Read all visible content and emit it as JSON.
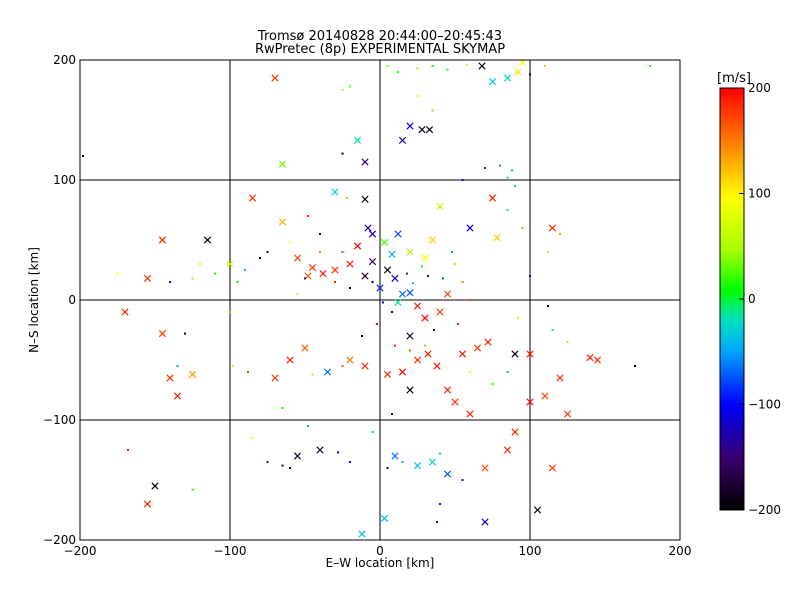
{
  "chart_data": {
    "type": "scatter",
    "title": "Tromsø 20140828 20:44:00–20:45:43",
    "subtitle": "RwPretec (8p) EXPERIMENTAL SKYMAP",
    "xlabel": "E–W location [km]",
    "ylabel": "N–S location [km]",
    "xlim": [
      -200,
      200
    ],
    "ylim": [
      -200,
      200
    ],
    "xticks": [
      -200,
      -100,
      0,
      100,
      200
    ],
    "yticks": [
      -200,
      -100,
      0,
      100,
      200
    ],
    "x_tick_labels": [
      "−200",
      "−100",
      "0",
      "100",
      "200"
    ],
    "y_tick_labels": [
      "−200",
      "−100",
      "0",
      "100",
      "200"
    ],
    "grid": true,
    "colorbar": {
      "label": "[m/s]",
      "range": [
        -200,
        200
      ],
      "ticks": [
        -200,
        -100,
        0,
        100,
        200
      ],
      "tick_labels": [
        "−200",
        "−100",
        "0",
        "100",
        "200"
      ],
      "colormap": [
        "#000000",
        "#3a006a",
        "#0000ff",
        "#00aaff",
        "#00e0c0",
        "#00ff00",
        "#aaff00",
        "#ffff00",
        "#ff8800",
        "#ff0000"
      ]
    },
    "points": [
      {
        "x": -45,
        "y": 27,
        "v": 180,
        "m": "x"
      },
      {
        "x": -38,
        "y": 22,
        "v": 190,
        "m": "x"
      },
      {
        "x": -48,
        "y": 20,
        "v": 170,
        "m": "x"
      },
      {
        "x": -30,
        "y": 25,
        "v": 185,
        "m": "x"
      },
      {
        "x": -55,
        "y": 35,
        "v": 175,
        "m": "x"
      },
      {
        "x": -40,
        "y": 40,
        "v": 160,
        "m": "+"
      },
      {
        "x": -20,
        "y": 30,
        "v": 190,
        "m": "x"
      },
      {
        "x": -15,
        "y": 45,
        "v": 200,
        "m": "x"
      },
      {
        "x": -10,
        "y": 20,
        "v": -180,
        "m": "x"
      },
      {
        "x": -5,
        "y": 32,
        "v": -150,
        "m": "x"
      },
      {
        "x": 0,
        "y": 10,
        "v": -100,
        "m": "x"
      },
      {
        "x": 5,
        "y": 25,
        "v": -190,
        "m": "x"
      },
      {
        "x": 10,
        "y": 18,
        "v": -120,
        "m": "x"
      },
      {
        "x": 15,
        "y": 5,
        "v": -80,
        "m": "x"
      },
      {
        "x": 8,
        "y": 38,
        "v": -60,
        "m": "x"
      },
      {
        "x": 12,
        "y": 55,
        "v": -90,
        "m": "x"
      },
      {
        "x": -8,
        "y": 60,
        "v": -130,
        "m": "x"
      },
      {
        "x": 3,
        "y": 48,
        "v": 40,
        "m": "x"
      },
      {
        "x": 20,
        "y": 40,
        "v": 70,
        "m": "x"
      },
      {
        "x": 30,
        "y": 35,
        "v": 110,
        "m": "x"
      },
      {
        "x": 35,
        "y": 50,
        "v": 130,
        "m": "x"
      },
      {
        "x": 25,
        "y": -5,
        "v": 190,
        "m": "x"
      },
      {
        "x": 30,
        "y": -15,
        "v": 200,
        "m": "x"
      },
      {
        "x": 40,
        "y": -10,
        "v": 180,
        "m": "x"
      },
      {
        "x": 45,
        "y": 5,
        "v": 175,
        "m": "x"
      },
      {
        "x": 20,
        "y": -30,
        "v": -170,
        "m": "x"
      },
      {
        "x": 32,
        "y": -45,
        "v": 190,
        "m": "x"
      },
      {
        "x": 25,
        "y": -50,
        "v": 185,
        "m": "x"
      },
      {
        "x": 38,
        "y": -55,
        "v": 195,
        "m": "x"
      },
      {
        "x": 15,
        "y": -60,
        "v": 200,
        "m": "x"
      },
      {
        "x": 5,
        "y": -62,
        "v": 185,
        "m": "x"
      },
      {
        "x": 55,
        "y": -45,
        "v": 190,
        "m": "x"
      },
      {
        "x": 65,
        "y": -40,
        "v": 180,
        "m": "x"
      },
      {
        "x": 72,
        "y": -35,
        "v": 190,
        "m": "x"
      },
      {
        "x": -10,
        "y": -55,
        "v": 185,
        "m": "x"
      },
      {
        "x": -20,
        "y": -50,
        "v": 160,
        "m": "x"
      },
      {
        "x": -60,
        "y": -50,
        "v": 190,
        "m": "x"
      },
      {
        "x": -70,
        "y": -65,
        "v": 180,
        "m": "x"
      },
      {
        "x": -50,
        "y": -40,
        "v": 170,
        "m": "x"
      },
      {
        "x": -35,
        "y": -60,
        "v": -80,
        "m": "x"
      },
      {
        "x": 20,
        "y": -75,
        "v": -190,
        "m": "x"
      },
      {
        "x": 45,
        "y": -75,
        "v": 190,
        "m": "x"
      },
      {
        "x": 50,
        "y": -85,
        "v": 185,
        "m": "x"
      },
      {
        "x": 60,
        "y": -95,
        "v": 190,
        "m": "x"
      },
      {
        "x": 100,
        "y": -85,
        "v": 195,
        "m": "x"
      },
      {
        "x": 110,
        "y": -80,
        "v": 175,
        "m": "x"
      },
      {
        "x": 120,
        "y": -65,
        "v": 185,
        "m": "x"
      },
      {
        "x": 125,
        "y": -95,
        "v": 180,
        "m": "x"
      },
      {
        "x": 140,
        "y": -48,
        "v": 190,
        "m": "x"
      },
      {
        "x": 145,
        "y": -50,
        "v": 185,
        "m": "x"
      },
      {
        "x": 90,
        "y": -110,
        "v": 190,
        "m": "x"
      },
      {
        "x": 85,
        "y": -125,
        "v": 185,
        "m": "x"
      },
      {
        "x": 70,
        "y": -140,
        "v": 175,
        "m": "x"
      },
      {
        "x": 115,
        "y": -140,
        "v": 180,
        "m": "x"
      },
      {
        "x": 100,
        "y": -45,
        "v": 190,
        "m": "x"
      },
      {
        "x": 90,
        "y": -45,
        "v": -190,
        "m": "x"
      },
      {
        "x": 105,
        "y": -175,
        "v": -190,
        "m": "x"
      },
      {
        "x": 70,
        "y": -185,
        "v": -130,
        "m": "x"
      },
      {
        "x": 3,
        "y": -182,
        "v": -60,
        "m": "x"
      },
      {
        "x": -12,
        "y": -195,
        "v": -50,
        "m": "x"
      },
      {
        "x": -150,
        "y": -155,
        "v": -190,
        "m": "x"
      },
      {
        "x": -155,
        "y": -170,
        "v": 190,
        "m": "x"
      },
      {
        "x": -140,
        "y": -65,
        "v": 185,
        "m": "x"
      },
      {
        "x": -125,
        "y": -62,
        "v": 150,
        "m": "x"
      },
      {
        "x": -135,
        "y": -80,
        "v": 190,
        "m": "x"
      },
      {
        "x": -145,
        "y": -28,
        "v": 180,
        "m": "x"
      },
      {
        "x": -170,
        "y": -10,
        "v": 190,
        "m": "x"
      },
      {
        "x": -155,
        "y": 18,
        "v": 185,
        "m": "x"
      },
      {
        "x": -145,
        "y": 50,
        "v": 190,
        "m": "x"
      },
      {
        "x": -115,
        "y": 50,
        "v": -190,
        "m": "x"
      },
      {
        "x": -100,
        "y": 30,
        "v": 90,
        "m": "x"
      },
      {
        "x": -85,
        "y": 85,
        "v": 185,
        "m": "x"
      },
      {
        "x": -65,
        "y": 65,
        "v": 140,
        "m": "x"
      },
      {
        "x": -70,
        "y": 185,
        "v": 185,
        "m": "x"
      },
      {
        "x": -65,
        "y": 113,
        "v": 50,
        "m": "x"
      },
      {
        "x": -15,
        "y": 133,
        "v": -20,
        "m": "x"
      },
      {
        "x": -10,
        "y": 115,
        "v": -150,
        "m": "x"
      },
      {
        "x": -30,
        "y": 90,
        "v": -30,
        "m": "x"
      },
      {
        "x": -10,
        "y": 84,
        "v": -190,
        "m": "x"
      },
      {
        "x": 20,
        "y": 145,
        "v": -110,
        "m": "x"
      },
      {
        "x": 28,
        "y": 142,
        "v": -190,
        "m": "x"
      },
      {
        "x": 33,
        "y": 142,
        "v": -190,
        "m": "x"
      },
      {
        "x": 15,
        "y": 133,
        "v": -140,
        "m": "x"
      },
      {
        "x": 40,
        "y": 78,
        "v": 80,
        "m": "x"
      },
      {
        "x": 60,
        "y": 60,
        "v": -110,
        "m": "x"
      },
      {
        "x": 75,
        "y": 85,
        "v": 190,
        "m": "x"
      },
      {
        "x": 78,
        "y": 52,
        "v": 130,
        "m": "x"
      },
      {
        "x": 115,
        "y": 60,
        "v": 185,
        "m": "x"
      },
      {
        "x": 92,
        "y": 190,
        "v": 120,
        "m": "x"
      },
      {
        "x": 95,
        "y": 198,
        "v": 110,
        "m": "x"
      },
      {
        "x": 68,
        "y": 195,
        "v": -190,
        "m": "x"
      },
      {
        "x": 75,
        "y": 182,
        "v": -40,
        "m": "x"
      },
      {
        "x": 85,
        "y": 185,
        "v": -20,
        "m": "x"
      },
      {
        "x": 20,
        "y": 6,
        "v": -90,
        "m": "x"
      },
      {
        "x": 12,
        "y": -2,
        "v": -10,
        "m": "x"
      },
      {
        "x": -5,
        "y": 55,
        "v": -120,
        "m": "x"
      },
      {
        "x": -55,
        "y": -130,
        "v": -180,
        "m": "x"
      },
      {
        "x": -40,
        "y": -125,
        "v": -170,
        "m": "x"
      },
      {
        "x": 10,
        "y": -130,
        "v": -80,
        "m": "x"
      },
      {
        "x": 25,
        "y": -138,
        "v": -40,
        "m": "x"
      },
      {
        "x": 35,
        "y": -135,
        "v": -30,
        "m": "x"
      },
      {
        "x": 45,
        "y": -145,
        "v": -90,
        "m": "x"
      },
      {
        "x": -28,
        "y": -127,
        "v": -120,
        "m": "+"
      },
      {
        "x": -65,
        "y": -138,
        "v": -170,
        "m": "+"
      },
      {
        "x": -75,
        "y": -135,
        "v": -150,
        "m": "+"
      },
      {
        "x": -60,
        "y": -140,
        "v": -180,
        "m": "+"
      },
      {
        "x": 15,
        "y": -135,
        "v": -60,
        "m": "+"
      },
      {
        "x": 40,
        "y": -128,
        "v": -40,
        "m": "+"
      },
      {
        "x": 5,
        "y": -140,
        "v": -130,
        "m": "+"
      },
      {
        "x": -20,
        "y": -135,
        "v": -110,
        "m": "+"
      },
      {
        "x": 55,
        "y": -150,
        "v": -140,
        "m": "+"
      },
      {
        "x": 40,
        "y": -170,
        "v": -110,
        "m": "+"
      },
      {
        "x": 38,
        "y": -185,
        "v": -150,
        "m": "+"
      },
      {
        "x": -40,
        "y": 55,
        "v": -160,
        "m": "+"
      },
      {
        "x": -25,
        "y": 40,
        "v": 180,
        "m": "+"
      },
      {
        "x": -30,
        "y": 15,
        "v": 190,
        "m": "+"
      },
      {
        "x": -20,
        "y": 10,
        "v": -170,
        "m": "+"
      },
      {
        "x": -5,
        "y": 15,
        "v": -190,
        "m": "+"
      },
      {
        "x": 2,
        "y": -2,
        "v": -140,
        "m": "+"
      },
      {
        "x": 8,
        "y": -10,
        "v": -180,
        "m": "+"
      },
      {
        "x": 18,
        "y": 22,
        "v": -100,
        "m": "+"
      },
      {
        "x": 22,
        "y": 14,
        "v": -60,
        "m": "+"
      },
      {
        "x": 28,
        "y": 28,
        "v": 20,
        "m": "+"
      },
      {
        "x": 32,
        "y": 20,
        "v": -120,
        "m": "+"
      },
      {
        "x": 42,
        "y": 18,
        "v": -90,
        "m": "+"
      },
      {
        "x": 50,
        "y": 30,
        "v": 60,
        "m": "+"
      },
      {
        "x": 48,
        "y": 40,
        "v": -70,
        "m": "+"
      },
      {
        "x": 55,
        "y": 15,
        "v": 160,
        "m": "+"
      },
      {
        "x": 60,
        "y": 0,
        "v": 180,
        "m": "+"
      },
      {
        "x": 52,
        "y": -20,
        "v": 190,
        "m": "+"
      },
      {
        "x": 36,
        "y": -25,
        "v": -180,
        "m": "+"
      },
      {
        "x": 30,
        "y": -38,
        "v": 140,
        "m": "+"
      },
      {
        "x": 20,
        "y": -42,
        "v": 170,
        "m": "+"
      },
      {
        "x": 10,
        "y": -38,
        "v": 190,
        "m": "+"
      },
      {
        "x": -2,
        "y": -20,
        "v": 200,
        "m": "+"
      },
      {
        "x": -12,
        "y": -30,
        "v": -200,
        "m": "+"
      },
      {
        "x": -25,
        "y": -55,
        "v": 170,
        "m": "+"
      },
      {
        "x": -45,
        "y": -62,
        "v": 60,
        "m": "+"
      },
      {
        "x": -88,
        "y": -60,
        "v": 185,
        "m": "+"
      },
      {
        "x": -98,
        "y": -55,
        "v": 80,
        "m": "+"
      },
      {
        "x": -120,
        "y": 30,
        "v": 90,
        "m": "+"
      },
      {
        "x": -125,
        "y": 18,
        "v": 60,
        "m": "+"
      },
      {
        "x": -110,
        "y": 22,
        "v": 30,
        "m": "+"
      },
      {
        "x": -95,
        "y": 15,
        "v": 20,
        "m": "+"
      },
      {
        "x": -90,
        "y": 25,
        "v": -60,
        "m": "+"
      },
      {
        "x": -80,
        "y": 35,
        "v": -190,
        "m": "+"
      },
      {
        "x": -75,
        "y": 40,
        "v": -130,
        "m": "+"
      },
      {
        "x": -140,
        "y": 15,
        "v": -120,
        "m": "+"
      },
      {
        "x": -175,
        "y": 22,
        "v": 110,
        "m": "+"
      },
      {
        "x": -100,
        "y": -10,
        "v": 40,
        "m": "+"
      },
      {
        "x": -135,
        "y": -55,
        "v": -70,
        "m": "+"
      },
      {
        "x": -130,
        "y": -28,
        "v": -190,
        "m": "+"
      },
      {
        "x": -168,
        "y": -125,
        "v": 190,
        "m": "+"
      },
      {
        "x": -125,
        "y": -158,
        "v": 20,
        "m": "+"
      },
      {
        "x": -198,
        "y": 120,
        "v": -190,
        "m": "+"
      },
      {
        "x": -25,
        "y": 175,
        "v": 60,
        "m": "+"
      },
      {
        "x": -20,
        "y": 178,
        "v": 40,
        "m": "+"
      },
      {
        "x": 5,
        "y": 195,
        "v": 50,
        "m": "+"
      },
      {
        "x": 12,
        "y": 190,
        "v": 30,
        "m": "+"
      },
      {
        "x": 25,
        "y": 193,
        "v": 60,
        "m": "+"
      },
      {
        "x": 35,
        "y": 195,
        "v": 30,
        "m": "+"
      },
      {
        "x": 45,
        "y": 192,
        "v": 20,
        "m": "+"
      },
      {
        "x": 58,
        "y": 196,
        "v": 70,
        "m": "+"
      },
      {
        "x": 100,
        "y": 188,
        "v": -180,
        "m": "+"
      },
      {
        "x": 110,
        "y": 195,
        "v": 130,
        "m": "+"
      },
      {
        "x": 180,
        "y": 195,
        "v": 40,
        "m": "+"
      },
      {
        "x": 70,
        "y": 110,
        "v": -100,
        "m": "+"
      },
      {
        "x": 80,
        "y": 112,
        "v": -80,
        "m": "+"
      },
      {
        "x": 88,
        "y": 108,
        "v": -50,
        "m": "+"
      },
      {
        "x": 85,
        "y": 102,
        "v": -20,
        "m": "+"
      },
      {
        "x": 90,
        "y": 95,
        "v": 0,
        "m": "+"
      },
      {
        "x": 55,
        "y": 100,
        "v": -110,
        "m": "+"
      },
      {
        "x": 35,
        "y": 158,
        "v": 140,
        "m": "+"
      },
      {
        "x": 25,
        "y": 170,
        "v": 110,
        "m": "+"
      },
      {
        "x": -25,
        "y": 122,
        "v": -190,
        "m": "+"
      },
      {
        "x": -22,
        "y": 85,
        "v": 60,
        "m": "+"
      },
      {
        "x": -48,
        "y": 70,
        "v": 190,
        "m": "+"
      },
      {
        "x": -60,
        "y": 48,
        "v": 110,
        "m": "+"
      },
      {
        "x": -55,
        "y": 5,
        "v": 80,
        "m": "+"
      },
      {
        "x": -50,
        "y": 18,
        "v": -150,
        "m": "+"
      },
      {
        "x": 112,
        "y": -5,
        "v": -190,
        "m": "+"
      },
      {
        "x": 170,
        "y": -55,
        "v": -190,
        "m": "+"
      },
      {
        "x": 115,
        "y": -25,
        "v": -30,
        "m": "+"
      },
      {
        "x": 125,
        "y": -35,
        "v": 60,
        "m": "+"
      },
      {
        "x": 92,
        "y": -15,
        "v": 120,
        "m": "+"
      },
      {
        "x": 100,
        "y": 20,
        "v": -120,
        "m": "+"
      },
      {
        "x": 120,
        "y": 55,
        "v": 150,
        "m": "+"
      },
      {
        "x": 112,
        "y": 40,
        "v": 80,
        "m": "+"
      },
      {
        "x": 85,
        "y": 75,
        "v": -20,
        "m": "+"
      },
      {
        "x": 95,
        "y": 60,
        "v": 40,
        "m": "+"
      },
      {
        "x": 60,
        "y": -60,
        "v": 100,
        "m": "+"
      },
      {
        "x": 75,
        "y": -70,
        "v": 30,
        "m": "+"
      },
      {
        "x": 85,
        "y": -60,
        "v": -60,
        "m": "+"
      },
      {
        "x": 8,
        "y": -95,
        "v": -170,
        "m": "+"
      },
      {
        "x": -5,
        "y": -110,
        "v": -40,
        "m": "+"
      },
      {
        "x": -65,
        "y": -90,
        "v": 30,
        "m": "+"
      },
      {
        "x": -85,
        "y": -115,
        "v": 90,
        "m": "+"
      },
      {
        "x": -48,
        "y": -105,
        "v": -60,
        "m": "+"
      }
    ]
  }
}
